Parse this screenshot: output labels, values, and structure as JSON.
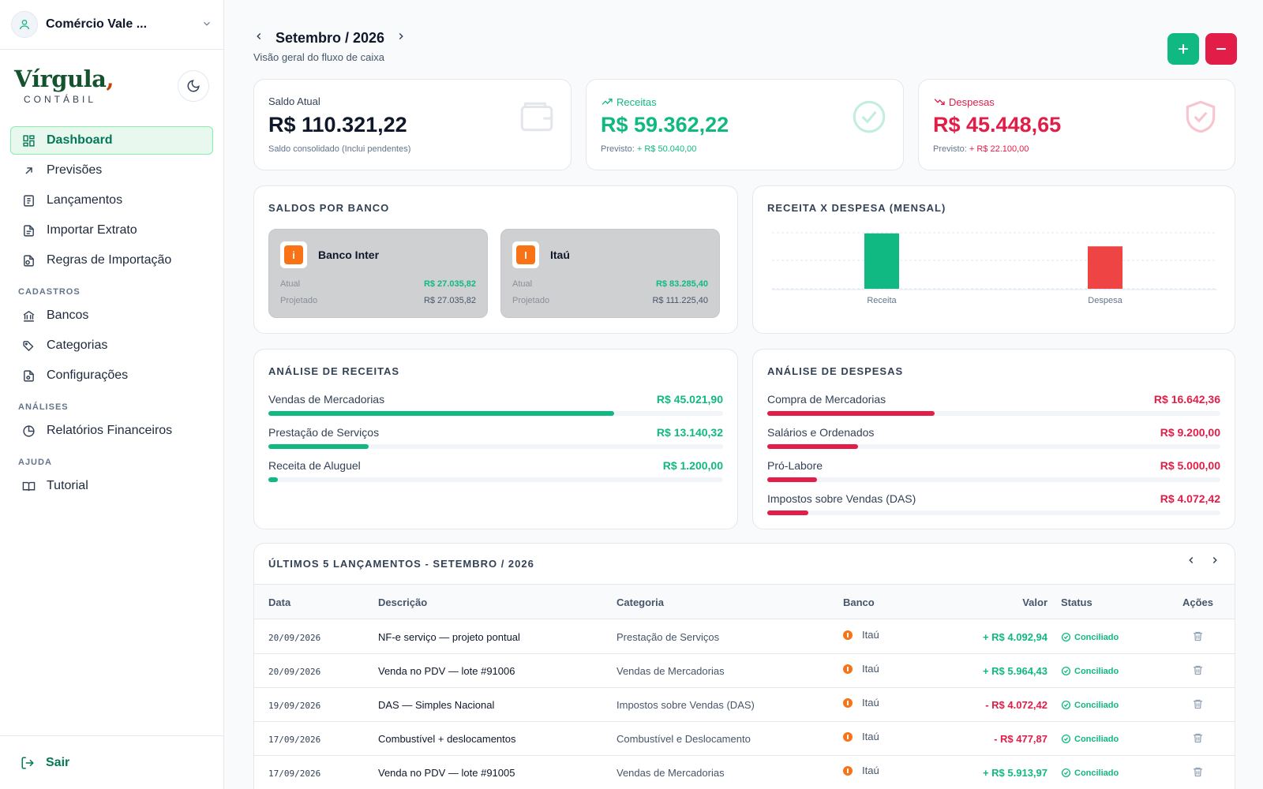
{
  "company": {
    "name": "Comércio Vale ..."
  },
  "brand": {
    "word": "Vírgula",
    "comma": ",",
    "sub": "CONTÁBIL"
  },
  "nav": {
    "main": [
      {
        "label": "Dashboard",
        "icon": "dashboard-icon",
        "active": true
      },
      {
        "label": "Previsões",
        "icon": "arrow-up-right-icon"
      },
      {
        "label": "Lançamentos",
        "icon": "receipt-icon"
      },
      {
        "label": "Importar Extrato",
        "icon": "file-import-icon"
      },
      {
        "label": "Regras de Importação",
        "icon": "file-rules-icon"
      }
    ],
    "section_cadastros": "CADASTROS",
    "cadastros": [
      {
        "label": "Bancos",
        "icon": "bank-icon"
      },
      {
        "label": "Categorias",
        "icon": "tags-icon"
      },
      {
        "label": "Configurações",
        "icon": "settings-file-icon"
      }
    ],
    "section_analises": "ANÁLISES",
    "analises": [
      {
        "label": "Relatórios Financeiros",
        "icon": "pie-chart-icon"
      }
    ],
    "section_ajuda": "AJUDA",
    "ajuda": [
      {
        "label": "Tutorial",
        "icon": "book-icon"
      }
    ],
    "logout": "Sair"
  },
  "header": {
    "period": "Setembro / 2026",
    "subtitle": "Visão geral do fluxo de caixa"
  },
  "kpis": {
    "saldo": {
      "label": "Saldo Atual",
      "value": "R$ 110.321,22",
      "note": "Saldo consolidado (Inclui pendentes)"
    },
    "receitas": {
      "label": "Receitas",
      "value": "R$ 59.362,22",
      "note_prefix": "Previsto: ",
      "note_value": "+ R$ 50.040,00"
    },
    "despesas": {
      "label": "Despesas",
      "value": "R$ 45.448,65",
      "note_prefix": "Previsto: ",
      "note_value": "+ R$ 22.100,00"
    }
  },
  "saldos_banco": {
    "title": "SALDOS POR BANCO",
    "banks": [
      {
        "name": "Banco Inter",
        "letter": "i",
        "atual_label": "Atual",
        "atual": "R$ 27.035,82",
        "proj_label": "Projetado",
        "projetado": "R$ 27.035,82"
      },
      {
        "name": "Itaú",
        "letter": "I",
        "atual_label": "Atual",
        "atual": "R$ 83.285,40",
        "proj_label": "Projetado",
        "projetado": "R$ 111.225,40"
      }
    ]
  },
  "chart_data": {
    "type": "bar",
    "title": "RECEITA X DESPESA (MENSAL)",
    "categories": [
      "Receita",
      "Despesa"
    ],
    "values": [
      59362.22,
      45448.65
    ],
    "colors": [
      "#10b981",
      "#ef4444"
    ],
    "ylim": [
      0,
      60000
    ],
    "grid": true
  },
  "analise_receitas": {
    "title": "ANÁLISE DE RECEITAS",
    "items": [
      {
        "label": "Vendas de Mercadorias",
        "value": "R$ 45.021,90",
        "pct": 0.76
      },
      {
        "label": "Prestação de Serviços",
        "value": "R$ 13.140,32",
        "pct": 0.22
      },
      {
        "label": "Receita de Aluguel",
        "value": "R$ 1.200,00",
        "pct": 0.02
      }
    ]
  },
  "analise_despesas": {
    "title": "ANÁLISE DE DESPESAS",
    "items": [
      {
        "label": "Compra de Mercadorias",
        "value": "R$ 16.642,36",
        "pct": 0.37
      },
      {
        "label": "Salários e Ordenados",
        "value": "R$ 9.200,00",
        "pct": 0.2
      },
      {
        "label": "Pró-Labore",
        "value": "R$ 5.000,00",
        "pct": 0.11
      },
      {
        "label": "Impostos sobre Vendas (DAS)",
        "value": "R$ 4.072,42",
        "pct": 0.09
      }
    ]
  },
  "lancamentos": {
    "title": "ÚLTIMOS 5 LANÇAMENTOS - SETEMBRO / 2026",
    "headers": {
      "data": "Data",
      "descricao": "Descrição",
      "categoria": "Categoria",
      "banco": "Banco",
      "valor": "Valor",
      "status": "Status",
      "acoes": "Ações"
    },
    "rows": [
      {
        "data": "20/09/2026",
        "descricao": "NF-e serviço — projeto pontual",
        "categoria": "Prestação de Serviços",
        "banco": "Itaú",
        "valor": "+ R$ 4.092,94",
        "tipo": "in",
        "status": "Conciliado"
      },
      {
        "data": "20/09/2026",
        "descricao": "Venda no PDV — lote #91006",
        "categoria": "Vendas de Mercadorias",
        "banco": "Itaú",
        "valor": "+ R$ 5.964,43",
        "tipo": "in",
        "status": "Conciliado"
      },
      {
        "data": "19/09/2026",
        "descricao": "DAS — Simples Nacional",
        "categoria": "Impostos sobre Vendas (DAS)",
        "banco": "Itaú",
        "valor": "- R$ 4.072,42",
        "tipo": "out",
        "status": "Conciliado"
      },
      {
        "data": "17/09/2026",
        "descricao": "Combustível + deslocamentos",
        "categoria": "Combustível e Deslocamento",
        "banco": "Itaú",
        "valor": "- R$ 477,87",
        "tipo": "out",
        "status": "Conciliado"
      },
      {
        "data": "17/09/2026",
        "descricao": "Venda no PDV — lote #91005",
        "categoria": "Vendas de Mercadorias",
        "banco": "Itaú",
        "valor": "+ R$ 5.913,97",
        "tipo": "in",
        "status": "Conciliado"
      }
    ]
  },
  "colors": {
    "green": "#10b981",
    "red": "#e11d48",
    "bank_orange": "#f97316",
    "brand_green": "#14532d"
  }
}
